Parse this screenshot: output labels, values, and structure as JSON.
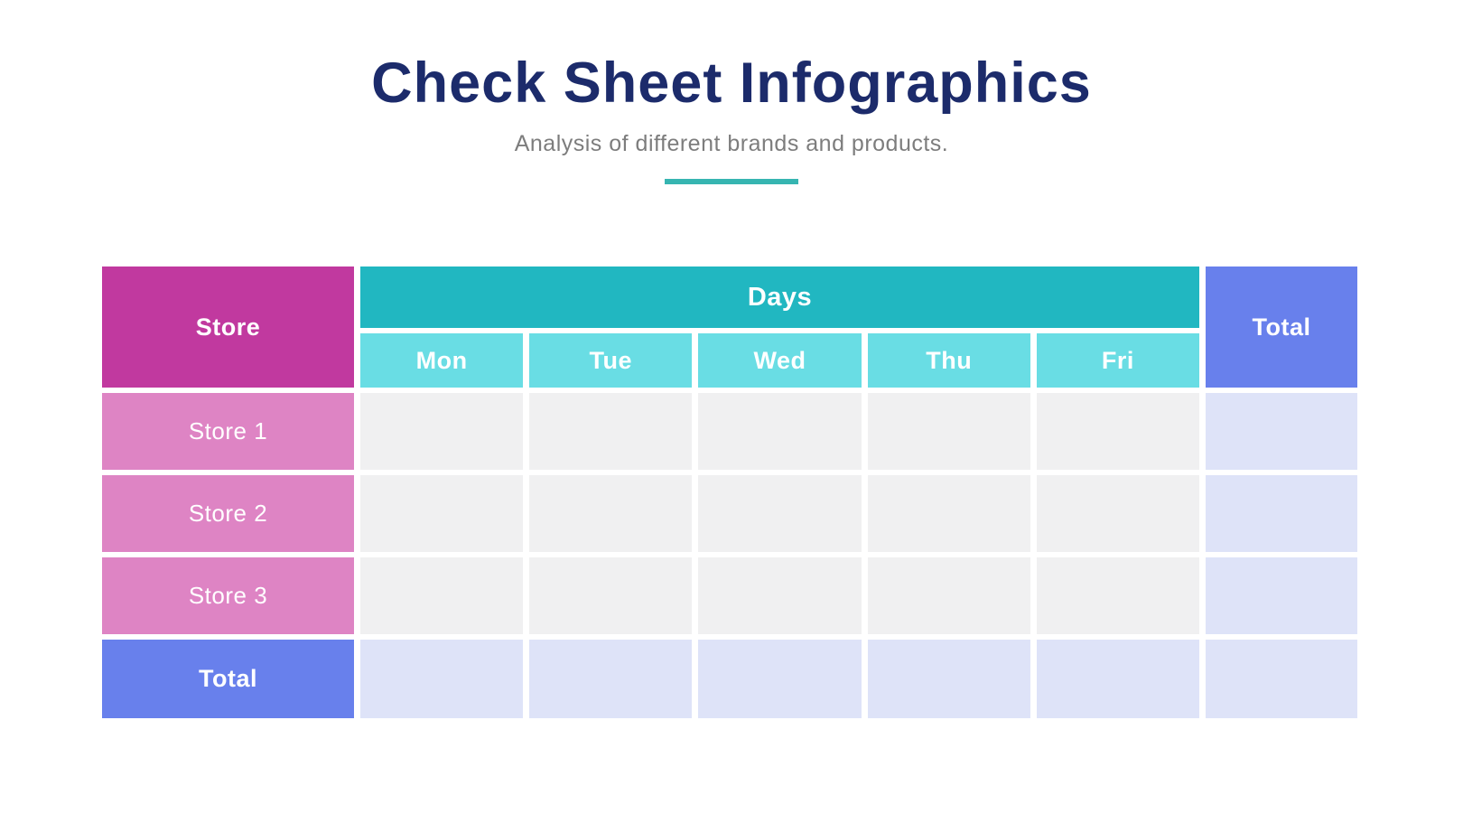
{
  "page": {
    "title": "Check Sheet Infographics",
    "subtitle": "Analysis of different brands and products."
  },
  "chart_data": {
    "type": "table",
    "title": "Check Sheet Infographics",
    "subtitle": "Analysis of different brands and products.",
    "corner_header": "Store",
    "group_header": "Days",
    "day_headers": [
      "Mon",
      "Tue",
      "Wed",
      "Thu",
      "Fri"
    ],
    "total_column_header": "Total",
    "rows": [
      {
        "label": "Store 1",
        "values": [
          "",
          "",
          "",
          "",
          ""
        ],
        "total": ""
      },
      {
        "label": "Store 2",
        "values": [
          "",
          "",
          "",
          "",
          ""
        ],
        "total": ""
      },
      {
        "label": "Store 3",
        "values": [
          "",
          "",
          "",
          "",
          ""
        ],
        "total": ""
      }
    ],
    "total_row": {
      "label": "Total",
      "values": [
        "",
        "",
        "",
        "",
        ""
      ],
      "grand_total": ""
    }
  },
  "colors": {
    "title": "#1C2B6B",
    "subtitle": "#7D7D7D",
    "accent": "#36B5B1",
    "store_header": "#C1399F",
    "days_header": "#21B7C1",
    "day_subheader": "#69DDE4",
    "total_header": "#6880EC",
    "row_label": "#DE84C4",
    "body_cell": "#F0F0F1",
    "total_cell": "#DEE3F8"
  }
}
